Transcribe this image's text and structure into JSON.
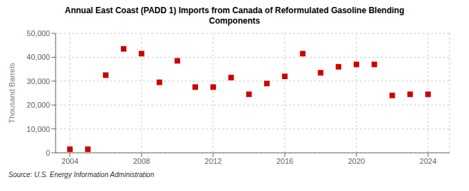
{
  "chart_data": {
    "type": "scatter",
    "title": "Annual East Coast (PADD 1) Imports from Canada of Reformulated Gasoline Blending\nComponents",
    "ylabel": "Thousand Barrels",
    "source": "Source: U.S. Energy Information Administration",
    "x": [
      2004,
      2005,
      2006,
      2007,
      2008,
      2009,
      2010,
      2011,
      2012,
      2013,
      2014,
      2015,
      2016,
      2017,
      2018,
      2019,
      2020,
      2021,
      2022,
      2023,
      2024
    ],
    "values": [
      1500,
      1500,
      32500,
      43500,
      41500,
      29500,
      38500,
      27500,
      27500,
      31500,
      24500,
      29000,
      32000,
      41500,
      33500,
      36000,
      37000,
      37000,
      24000,
      24500,
      24500
    ],
    "color": "#cc0000",
    "marker": "square",
    "xlim": [
      2003.2,
      2025.2
    ],
    "xticks": [
      2004,
      2008,
      2012,
      2016,
      2020,
      2024
    ],
    "ylim": [
      0,
      50000
    ],
    "yticks": [
      0,
      {
        "value": 10000,
        "label": "10,000"
      },
      {
        "value": 20000,
        "label": "20,000"
      },
      {
        "value": 30000,
        "label": "30,000"
      },
      {
        "value": 40000,
        "label": "40,000"
      },
      {
        "value": 50000,
        "label": "50,000"
      }
    ],
    "grid": true
  }
}
